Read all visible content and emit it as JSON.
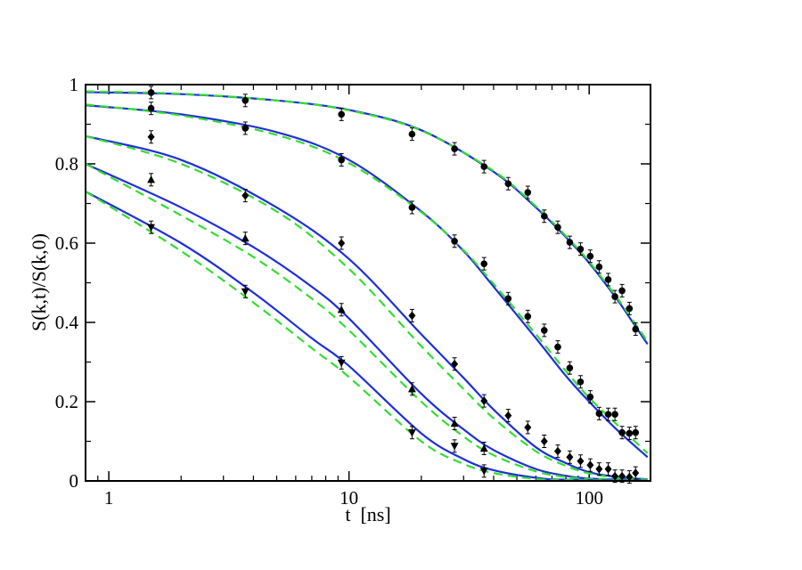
{
  "chart_data": {
    "type": "scatter",
    "title": "",
    "xlabel": "t  [ns]",
    "ylabel": "S(k,t)/S(k,0)",
    "xscale": "log",
    "xlim": [
      0.8,
      180
    ],
    "ylim": [
      0,
      1
    ],
    "grid": false,
    "legend": "none",
    "x_ticks": [
      1,
      10,
      100
    ],
    "x_tick_labels": [
      "1",
      "10",
      "100"
    ],
    "y_ticks": [
      0,
      0.2,
      0.4,
      0.6,
      0.8,
      1
    ],
    "y_tick_labels": [
      "0",
      "0.2",
      "0.4",
      "0.6",
      "0.8",
      "1"
    ],
    "colors": {
      "solid": "#1f2fd6",
      "dashed": "#33dd33",
      "points": "#000000"
    },
    "series": [
      {
        "marker": "circle",
        "points": [
          [
            1.5,
            0.98
          ],
          [
            3.7,
            0.96
          ],
          [
            9.3,
            0.925
          ],
          [
            18.3,
            0.875
          ],
          [
            27.5,
            0.838
          ],
          [
            36.5,
            0.793
          ],
          [
            46,
            0.75
          ],
          [
            55.5,
            0.728
          ],
          [
            65,
            0.668
          ],
          [
            74,
            0.64
          ],
          [
            83,
            0.602
          ],
          [
            92,
            0.585
          ],
          [
            101,
            0.567
          ],
          [
            110,
            0.54
          ],
          [
            120,
            0.508
          ],
          [
            128,
            0.465
          ],
          [
            137,
            0.48
          ],
          [
            147,
            0.435
          ],
          [
            156,
            0.383
          ]
        ],
        "fit_solid": [
          [
            0.8,
            0.981
          ],
          [
            2,
            0.976
          ],
          [
            5,
            0.96
          ],
          [
            10,
            0.936
          ],
          [
            20,
            0.885
          ],
          [
            40,
            0.78
          ],
          [
            60,
            0.69
          ],
          [
            80,
            0.615
          ],
          [
            100,
            0.55
          ],
          [
            130,
            0.46
          ],
          [
            150,
            0.405
          ],
          [
            175,
            0.345
          ]
        ],
        "fit_dashed": [
          [
            0.8,
            0.983
          ],
          [
            2,
            0.977
          ],
          [
            5,
            0.96
          ],
          [
            10,
            0.935
          ],
          [
            20,
            0.884
          ],
          [
            40,
            0.782
          ],
          [
            60,
            0.693
          ],
          [
            80,
            0.618
          ],
          [
            100,
            0.553
          ],
          [
            130,
            0.464
          ],
          [
            150,
            0.41
          ],
          [
            175,
            0.352
          ]
        ]
      },
      {
        "marker": "circle",
        "points": [
          [
            1.5,
            0.94
          ],
          [
            3.7,
            0.89
          ],
          [
            9.3,
            0.81
          ],
          [
            18.3,
            0.69
          ],
          [
            27.5,
            0.605
          ],
          [
            36.5,
            0.548
          ],
          [
            46,
            0.46
          ],
          [
            55.5,
            0.415
          ],
          [
            65,
            0.38
          ],
          [
            74,
            0.338
          ],
          [
            83,
            0.285
          ],
          [
            92,
            0.25
          ],
          [
            101,
            0.212
          ],
          [
            110,
            0.17
          ],
          [
            120,
            0.168
          ],
          [
            128,
            0.168
          ],
          [
            137,
            0.122
          ],
          [
            147,
            0.12
          ],
          [
            156,
            0.122
          ]
        ],
        "fit_solid": [
          [
            0.8,
            0.948
          ],
          [
            2,
            0.925
          ],
          [
            5,
            0.88
          ],
          [
            10,
            0.81
          ],
          [
            20,
            0.68
          ],
          [
            30,
            0.58
          ],
          [
            40,
            0.49
          ],
          [
            60,
            0.36
          ],
          [
            80,
            0.265
          ],
          [
            100,
            0.2
          ],
          [
            130,
            0.13
          ],
          [
            175,
            0.06
          ]
        ],
        "fit_dashed": [
          [
            0.8,
            0.95
          ],
          [
            2,
            0.922
          ],
          [
            5,
            0.873
          ],
          [
            10,
            0.802
          ],
          [
            20,
            0.678
          ],
          [
            30,
            0.582
          ],
          [
            40,
            0.497
          ],
          [
            60,
            0.37
          ],
          [
            80,
            0.277
          ],
          [
            100,
            0.21
          ],
          [
            130,
            0.143
          ],
          [
            175,
            0.07
          ]
        ]
      },
      {
        "marker": "diamond",
        "points": [
          [
            1.5,
            0.868
          ],
          [
            3.7,
            0.72
          ],
          [
            9.3,
            0.6
          ],
          [
            18.3,
            0.417
          ],
          [
            27.5,
            0.295
          ],
          [
            36.5,
            0.202
          ],
          [
            46,
            0.165
          ],
          [
            55.5,
            0.135
          ],
          [
            65,
            0.1
          ],
          [
            74,
            0.075
          ],
          [
            83,
            0.06
          ],
          [
            92,
            0.05
          ],
          [
            101,
            0.04
          ],
          [
            110,
            0.03
          ],
          [
            120,
            0.03
          ],
          [
            128,
            0.012
          ],
          [
            137,
            0.012
          ],
          [
            147,
            0.01
          ],
          [
            156,
            0.02
          ]
        ],
        "fit_solid": [
          [
            0.8,
            0.87
          ],
          [
            2,
            0.81
          ],
          [
            5,
            0.69
          ],
          [
            10,
            0.56
          ],
          [
            20,
            0.37
          ],
          [
            30,
            0.26
          ],
          [
            40,
            0.18
          ],
          [
            60,
            0.085
          ],
          [
            80,
            0.045
          ],
          [
            100,
            0.022
          ],
          [
            130,
            0.01
          ],
          [
            175,
            0.004
          ]
        ],
        "fit_dashed": [
          [
            0.8,
            0.87
          ],
          [
            2,
            0.8
          ],
          [
            5,
            0.68
          ],
          [
            10,
            0.535
          ],
          [
            20,
            0.34
          ],
          [
            30,
            0.232
          ],
          [
            40,
            0.158
          ],
          [
            60,
            0.075
          ],
          [
            80,
            0.038
          ],
          [
            100,
            0.019
          ],
          [
            130,
            0.008
          ],
          [
            175,
            0.003
          ]
        ]
      },
      {
        "marker": "triangle-up",
        "points": [
          [
            1.5,
            0.76
          ],
          [
            3.7,
            0.612
          ],
          [
            9.3,
            0.432
          ],
          [
            18.3,
            0.232
          ],
          [
            27.5,
            0.145
          ],
          [
            36.5,
            0.082
          ]
        ],
        "fit_solid": [
          [
            0.8,
            0.8
          ],
          [
            2,
            0.69
          ],
          [
            4,
            0.59
          ],
          [
            7,
            0.49
          ],
          [
            10,
            0.41
          ],
          [
            20,
            0.22
          ],
          [
            30,
            0.13
          ],
          [
            40,
            0.078
          ],
          [
            60,
            0.03
          ],
          [
            80,
            0.013
          ],
          [
            100,
            0.006
          ],
          [
            175,
            0.001
          ]
        ],
        "fit_dashed": [
          [
            0.8,
            0.8
          ],
          [
            2,
            0.67
          ],
          [
            4,
            0.565
          ],
          [
            7,
            0.46
          ],
          [
            10,
            0.38
          ],
          [
            20,
            0.2
          ],
          [
            30,
            0.112
          ],
          [
            40,
            0.065
          ],
          [
            60,
            0.024
          ],
          [
            80,
            0.01
          ],
          [
            100,
            0.005
          ],
          [
            175,
            0.001
          ]
        ]
      },
      {
        "marker": "triangle-down",
        "points": [
          [
            1.5,
            0.64
          ],
          [
            3.7,
            0.478
          ],
          [
            9.3,
            0.298
          ],
          [
            18.3,
            0.122
          ],
          [
            27.5,
            0.088
          ],
          [
            36.5,
            0.025
          ]
        ],
        "fit_solid": [
          [
            0.8,
            0.73
          ],
          [
            2,
            0.6
          ],
          [
            4,
            0.475
          ],
          [
            7,
            0.36
          ],
          [
            10,
            0.29
          ],
          [
            20,
            0.12
          ],
          [
            30,
            0.055
          ],
          [
            40,
            0.027
          ],
          [
            60,
            0.008
          ],
          [
            80,
            0.003
          ],
          [
            175,
            0.0
          ]
        ],
        "fit_dashed": [
          [
            0.8,
            0.73
          ],
          [
            2,
            0.58
          ],
          [
            4,
            0.45
          ],
          [
            7,
            0.335
          ],
          [
            10,
            0.262
          ],
          [
            20,
            0.1
          ],
          [
            30,
            0.043
          ],
          [
            40,
            0.02
          ],
          [
            60,
            0.005
          ],
          [
            80,
            0.002
          ],
          [
            175,
            0.0
          ]
        ]
      }
    ]
  }
}
